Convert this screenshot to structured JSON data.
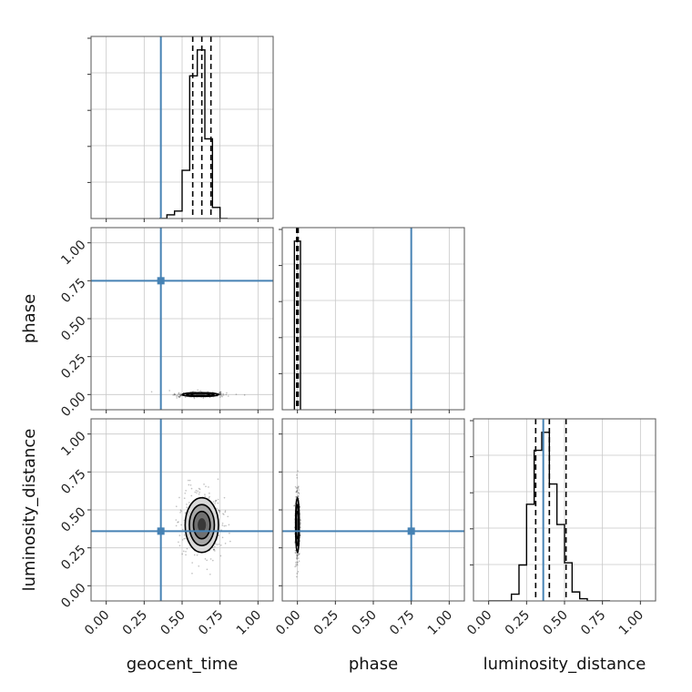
{
  "chart_data": {
    "type": "corner",
    "parameters": [
      "geocent_time",
      "phase",
      "luminosity_distance"
    ],
    "axis_range": [
      -0.1,
      1.1
    ],
    "tick_labels": [
      "0.00",
      "0.25",
      "0.50",
      "0.75",
      "1.00"
    ],
    "ticks": [
      0,
      0.25,
      0.5,
      0.75,
      1.0
    ],
    "grid": true,
    "truth_color": "#4682b4",
    "truths": {
      "geocent_time": 0.36,
      "phase": 0.75,
      "luminosity_distance": 0.36
    },
    "histograms": {
      "geocent_time": {
        "bin_edges": [
          0.35,
          0.4,
          0.45,
          0.5,
          0.55,
          0.6,
          0.65,
          0.7,
          0.75,
          0.8
        ],
        "values": [
          0.0,
          0.02,
          0.04,
          0.26,
          0.77,
          0.91,
          0.43,
          0.06,
          0.0
        ],
        "quantiles": [
          0.57,
          0.63,
          0.69
        ]
      },
      "phase": {
        "bin_edges": [
          -0.02,
          0.0,
          0.02
        ],
        "values": [
          0.98,
          0.98
        ],
        "quantiles": [
          -0.005,
          0.0,
          0.005
        ]
      },
      "luminosity_distance": {
        "bin_edges": [
          0.0,
          0.05,
          0.1,
          0.15,
          0.2,
          0.25,
          0.3,
          0.35,
          0.4,
          0.45,
          0.5,
          0.55,
          0.6,
          0.65,
          0.7,
          0.75,
          0.8
        ],
        "values": [
          0.0,
          0.0,
          0.0,
          0.03,
          0.16,
          0.43,
          0.67,
          0.75,
          0.52,
          0.34,
          0.17,
          0.04,
          0.01,
          0.0,
          0.0,
          0.0
        ],
        "quantiles": [
          0.31,
          0.4,
          0.51
        ]
      }
    },
    "contours_2d": [
      {
        "row": 1,
        "col": 0,
        "x_param": "geocent_time",
        "y_param": "phase",
        "center": [
          0.62,
          0.0
        ],
        "sigma": [
          0.06,
          0.006
        ]
      },
      {
        "row": 2,
        "col": 0,
        "x_param": "geocent_time",
        "y_param": "luminosity_distance",
        "center": [
          0.63,
          0.4
        ],
        "sigma": [
          0.055,
          0.09
        ]
      },
      {
        "row": 2,
        "col": 1,
        "x_param": "phase",
        "y_param": "luminosity_distance",
        "center": [
          0.0,
          0.4
        ],
        "sigma": [
          0.006,
          0.09
        ]
      }
    ]
  }
}
